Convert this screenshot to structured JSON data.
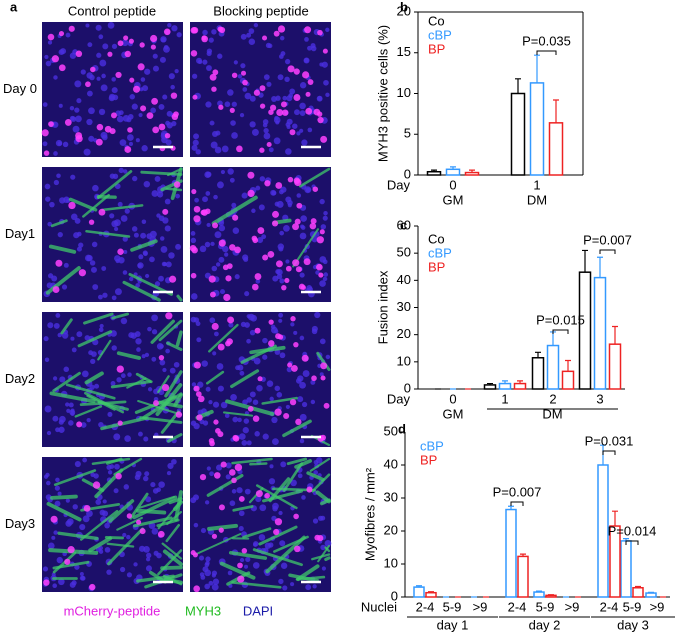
{
  "panel_a": {
    "label": "a",
    "columns": [
      "Control peptide",
      "Blocking peptide"
    ],
    "rows": [
      "Day 0",
      "Day1",
      "Day2",
      "Day3"
    ],
    "legend": [
      {
        "name": "mCherry-peptide",
        "color": "#e020e0"
      },
      {
        "name": "MYH3",
        "color": "#22bb22"
      },
      {
        "name": "DAPI",
        "color": "#1a1aa8"
      }
    ]
  },
  "chart_data": [
    {
      "type": "bar",
      "panel": "b",
      "ylabel": "MYH3 positive cells (%)",
      "x_label": "Day",
      "frame": true,
      "groups": [
        {
          "label": "GM",
          "categories": [
            "0"
          ]
        },
        {
          "label": "DM",
          "categories": [
            "1"
          ]
        }
      ],
      "series": [
        {
          "name": "Co",
          "color": "#000000",
          "values": [
            0.4,
            10
          ],
          "errors": [
            0.2,
            1.8
          ]
        },
        {
          "name": "cBP",
          "color": "#3399ff",
          "values": [
            0.7,
            11.3
          ],
          "errors": [
            0.3,
            3.4
          ]
        },
        {
          "name": "BP",
          "color": "#ee2222",
          "values": [
            0.3,
            6.4
          ],
          "errors": [
            0.3,
            2.8
          ]
        }
      ],
      "ylim": [
        0,
        20
      ],
      "yticks": [
        0,
        5,
        10,
        15,
        20
      ],
      "annotations": [
        "P=0.035"
      ]
    },
    {
      "type": "bar",
      "panel": "c",
      "ylabel": "Fusion index",
      "x_label": "Day",
      "frame": false,
      "groups": [
        {
          "label": "GM",
          "categories": [
            "0"
          ]
        },
        {
          "label": "DM",
          "categories": [
            "1",
            "2",
            "3"
          ]
        }
      ],
      "series": [
        {
          "name": "Co",
          "color": "#000000",
          "values": [
            0,
            1.5,
            11.5,
            43
          ],
          "errors": [
            0,
            0.5,
            2,
            8
          ]
        },
        {
          "name": "cBP",
          "color": "#3399ff",
          "values": [
            0,
            2,
            16,
            41
          ],
          "errors": [
            0,
            1,
            5,
            7.5
          ]
        },
        {
          "name": "BP",
          "color": "#ee2222",
          "values": [
            0,
            2,
            6.5,
            16.5
          ],
          "errors": [
            0,
            1,
            4,
            6.5
          ]
        }
      ],
      "ylim": [
        0,
        60
      ],
      "yticks": [
        0,
        10,
        20,
        30,
        40,
        50,
        60
      ],
      "annotations": [
        "P=0.015",
        "P=0.007"
      ]
    },
    {
      "type": "bar",
      "panel": "d",
      "ylabel": "Myofibres / mm²",
      "x_label": "Nuclei",
      "frame": false,
      "groups": [
        {
          "label": "day 1",
          "categories": [
            "2-4",
            "5-9",
            ">9"
          ]
        },
        {
          "label": "day 2",
          "categories": [
            "2-4",
            "5-9",
            ">9"
          ]
        },
        {
          "label": "day 3",
          "categories": [
            "2-4",
            "5-9",
            ">9"
          ]
        }
      ],
      "series": [
        {
          "name": "cBP",
          "color": "#3399ff",
          "values": [
            3,
            0,
            0,
            26.5,
            1.5,
            0,
            40,
            17,
            1.2
          ],
          "errors": [
            0.4,
            0,
            0,
            1,
            0.3,
            0,
            6,
            0.7,
            0.2
          ]
        },
        {
          "name": "BP",
          "color": "#ee2222",
          "values": [
            1.3,
            0,
            0,
            12.3,
            0.5,
            0,
            21.5,
            2.8,
            0
          ],
          "errors": [
            0.3,
            0,
            0,
            0.7,
            0.2,
            0,
            4.5,
            0.4,
            0
          ]
        }
      ],
      "ylim": [
        0,
        50
      ],
      "yticks": [
        0,
        10,
        20,
        30,
        40,
        50
      ],
      "annotations": [
        "P=0.007",
        "P=0.031",
        "P=0.014"
      ]
    }
  ]
}
